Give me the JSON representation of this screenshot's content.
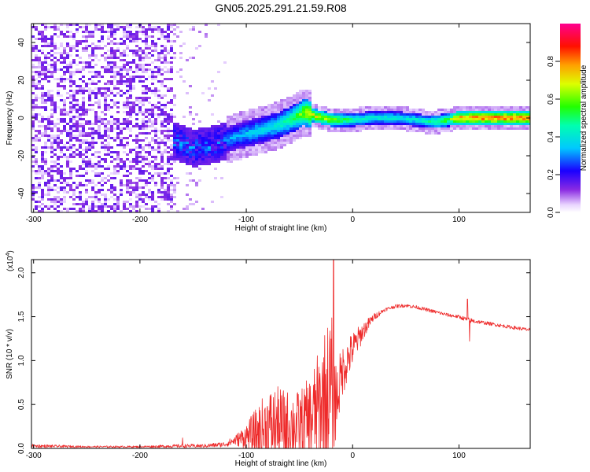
{
  "title": "GN05.2025.291.21.59.R08",
  "chart_data": [
    {
      "type": "heatmap",
      "title": "GN05.2025.291.21.59.R08",
      "xlabel": "Height of straight line (km)",
      "ylabel": "Frequency (Hz)",
      "xlim": [
        -302,
        167
      ],
      "ylim": [
        -50,
        50
      ],
      "xticks": [
        "-300",
        "-200",
        "-100",
        "0",
        "100"
      ],
      "yticks": [
        "-40",
        "-20",
        "0",
        "20",
        "40"
      ],
      "colorbar": {
        "label": "Normalized spectral amplitude",
        "range": [
          0,
          1
        ],
        "ticks": [
          "0.0",
          "0.2",
          "0.4",
          "0.6",
          "0.8"
        ],
        "colormap": "rainbow (white → violet → blue → cyan → green → yellow → red → magenta)"
      },
      "ridge": {
        "description": "Frequency of peak spectral amplitude vs height",
        "x": [
          -170,
          -150,
          -130,
          -110,
          -90,
          -70,
          -55,
          -45,
          -35,
          -20,
          0,
          20,
          40,
          60,
          70,
          80,
          90,
          100,
          130,
          165
        ],
        "y": [
          -12,
          -16,
          -14,
          -10,
          -7,
          -4,
          0,
          3,
          1,
          -1,
          -1,
          0,
          0,
          -1,
          -2,
          -2,
          -1,
          0,
          0,
          0
        ],
        "amplitude": [
          0.25,
          0.3,
          0.32,
          0.35,
          0.4,
          0.45,
          0.55,
          0.7,
          0.75,
          0.7,
          0.5,
          0.45,
          0.45,
          0.45,
          0.5,
          0.55,
          0.6,
          0.85,
          0.9,
          0.9
        ]
      }
    },
    {
      "type": "line",
      "xlabel": "Height of straight line (km)",
      "ylabel": "SNR (10 * v/v)",
      "yscale_label": "(x10",
      "yscale_exp": "4",
      "xlim": [
        -302,
        167
      ],
      "ylim": [
        0,
        2.15
      ],
      "xticks": [
        "-300",
        "-200",
        "-100",
        "0",
        "100"
      ],
      "yticks": [
        "0.0",
        "0.5",
        "1.0",
        "1.5",
        "2.0"
      ],
      "series": [
        {
          "name": "SNR",
          "color": "#ee2a2a",
          "envelope_x": [
            -302,
            -250,
            -200,
            -160,
            -140,
            -120,
            -110,
            -100,
            -90,
            -80,
            -70,
            -60,
            -50,
            -40,
            -30,
            -25,
            -20,
            -15,
            -10,
            0,
            10,
            20,
            30,
            40,
            50,
            60,
            70,
            80,
            90,
            100,
            110,
            120,
            130,
            140,
            150,
            167
          ],
          "envelope_y": [
            0.03,
            0.02,
            0.02,
            0.03,
            0.03,
            0.05,
            0.1,
            0.15,
            0.2,
            0.28,
            0.3,
            0.3,
            0.3,
            0.38,
            0.55,
            0.7,
            0.75,
            0.6,
            0.9,
            1.15,
            1.35,
            1.5,
            1.58,
            1.62,
            1.63,
            1.61,
            1.58,
            1.55,
            1.52,
            1.5,
            1.46,
            1.44,
            1.42,
            1.4,
            1.38,
            1.35
          ],
          "noise_amplitude": [
            0.02,
            0.01,
            0.01,
            0.02,
            0.02,
            0.03,
            0.06,
            0.15,
            0.3,
            0.45,
            0.45,
            0.4,
            0.4,
            0.5,
            0.7,
            0.8,
            0.9,
            0.4,
            0.3,
            0.2,
            0.1,
            0.04,
            0.02,
            0.02,
            0.02,
            0.02,
            0.02,
            0.02,
            0.02,
            0.02,
            0.03,
            0.02,
            0.02,
            0.02,
            0.02,
            0.02
          ],
          "spikes": [
            {
              "x": -160,
              "y": 0.12
            },
            {
              "x": -18,
              "y": 2.15
            },
            {
              "x": 108,
              "y": 1.7
            },
            {
              "x": 110,
              "y": 1.22
            }
          ]
        }
      ]
    }
  ]
}
